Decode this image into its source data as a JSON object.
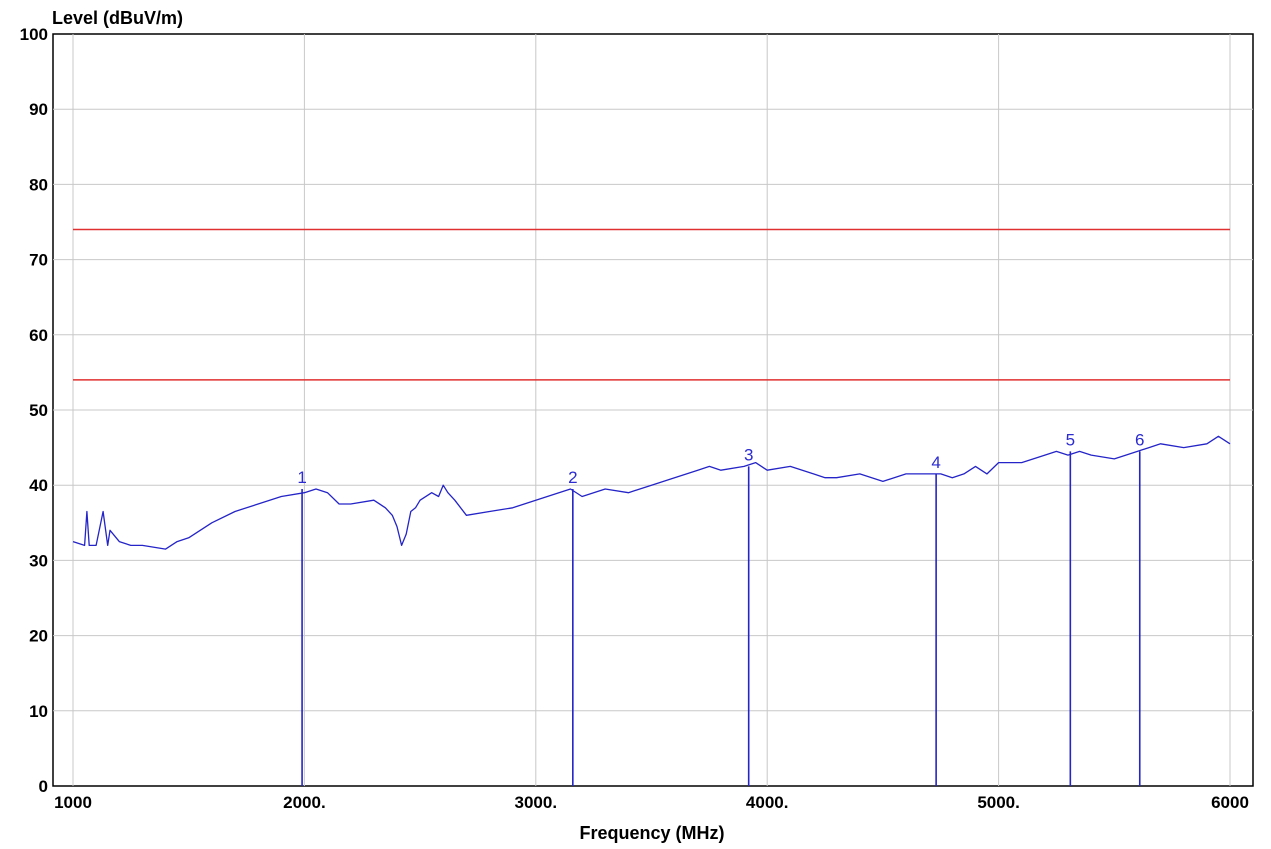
{
  "chart_data": {
    "type": "line",
    "ylabel": "Level (dBuV/m)",
    "xlabel": "Frequency (MHz)",
    "xlim": [
      1000,
      6000
    ],
    "ylim": [
      0,
      100
    ],
    "x_ticks": [
      1000,
      2000,
      3000,
      4000,
      5000,
      6000
    ],
    "x_tick_labels": [
      "1000",
      "2000.",
      "3000.",
      "4000.",
      "5000.",
      "6000"
    ],
    "y_ticks": [
      0,
      10,
      20,
      30,
      40,
      50,
      60,
      70,
      80,
      90,
      100
    ],
    "y_tick_labels": [
      "0",
      "10",
      "20",
      "30",
      "40",
      "50",
      "60",
      "70",
      "80",
      "90",
      "100"
    ],
    "grid": true,
    "limit_lines": [
      {
        "value": 74,
        "color": "#e03030"
      },
      {
        "value": 54,
        "color": "#e03030"
      }
    ],
    "series": [
      {
        "color": "#2424c8",
        "x": [
          1000,
          1050,
          1060,
          1070,
          1100,
          1130,
          1150,
          1160,
          1200,
          1250,
          1300,
          1400,
          1450,
          1500,
          1600,
          1700,
          1800,
          1900,
          2000,
          2050,
          2100,
          2150,
          2200,
          2300,
          2350,
          2380,
          2400,
          2420,
          2440,
          2460,
          2480,
          2500,
          2550,
          2580,
          2600,
          2620,
          2650,
          2700,
          2800,
          2900,
          3000,
          3100,
          3150,
          3200,
          3300,
          3400,
          3500,
          3600,
          3700,
          3750,
          3800,
          3900,
          3950,
          4000,
          4100,
          4200,
          4250,
          4300,
          4400,
          4500,
          4600,
          4700,
          4750,
          4800,
          4850,
          4900,
          4950,
          5000,
          5100,
          5200,
          5250,
          5300,
          5350,
          5400,
          5500,
          5550,
          5600,
          5650,
          5700,
          5800,
          5900,
          5950,
          6000
        ],
        "y": [
          32.5,
          32.0,
          36.5,
          32.0,
          32.0,
          36.5,
          32.0,
          34.0,
          32.5,
          32.0,
          32.0,
          31.5,
          32.5,
          33.0,
          35.0,
          36.5,
          37.5,
          38.5,
          39.0,
          39.5,
          39.0,
          37.5,
          37.5,
          38.0,
          37.0,
          36.0,
          34.5,
          32.0,
          33.5,
          36.5,
          37.0,
          38.0,
          39.0,
          38.5,
          40.0,
          39.0,
          38.0,
          36.0,
          36.5,
          37.0,
          38.0,
          39.0,
          39.5,
          38.5,
          39.5,
          39.0,
          40.0,
          41.0,
          42.0,
          42.5,
          42.0,
          42.5,
          43.0,
          42.0,
          42.5,
          41.5,
          41.0,
          41.0,
          41.5,
          40.5,
          41.5,
          41.5,
          41.5,
          41.0,
          41.5,
          42.5,
          41.5,
          43.0,
          43.0,
          44.0,
          44.5,
          44.0,
          44.5,
          44.0,
          43.5,
          44.0,
          44.5,
          45.0,
          45.5,
          45.0,
          45.5,
          46.5,
          45.5
        ]
      }
    ],
    "markers": [
      {
        "label": "1",
        "x": 1990,
        "y": 39.5
      },
      {
        "label": "2",
        "x": 3160,
        "y": 39.5
      },
      {
        "label": "3",
        "x": 3920,
        "y": 42.5
      },
      {
        "label": "4",
        "x": 4730,
        "y": 41.5
      },
      {
        "label": "5",
        "x": 5310,
        "y": 44.5
      },
      {
        "label": "6",
        "x": 5610,
        "y": 44.5
      }
    ]
  }
}
